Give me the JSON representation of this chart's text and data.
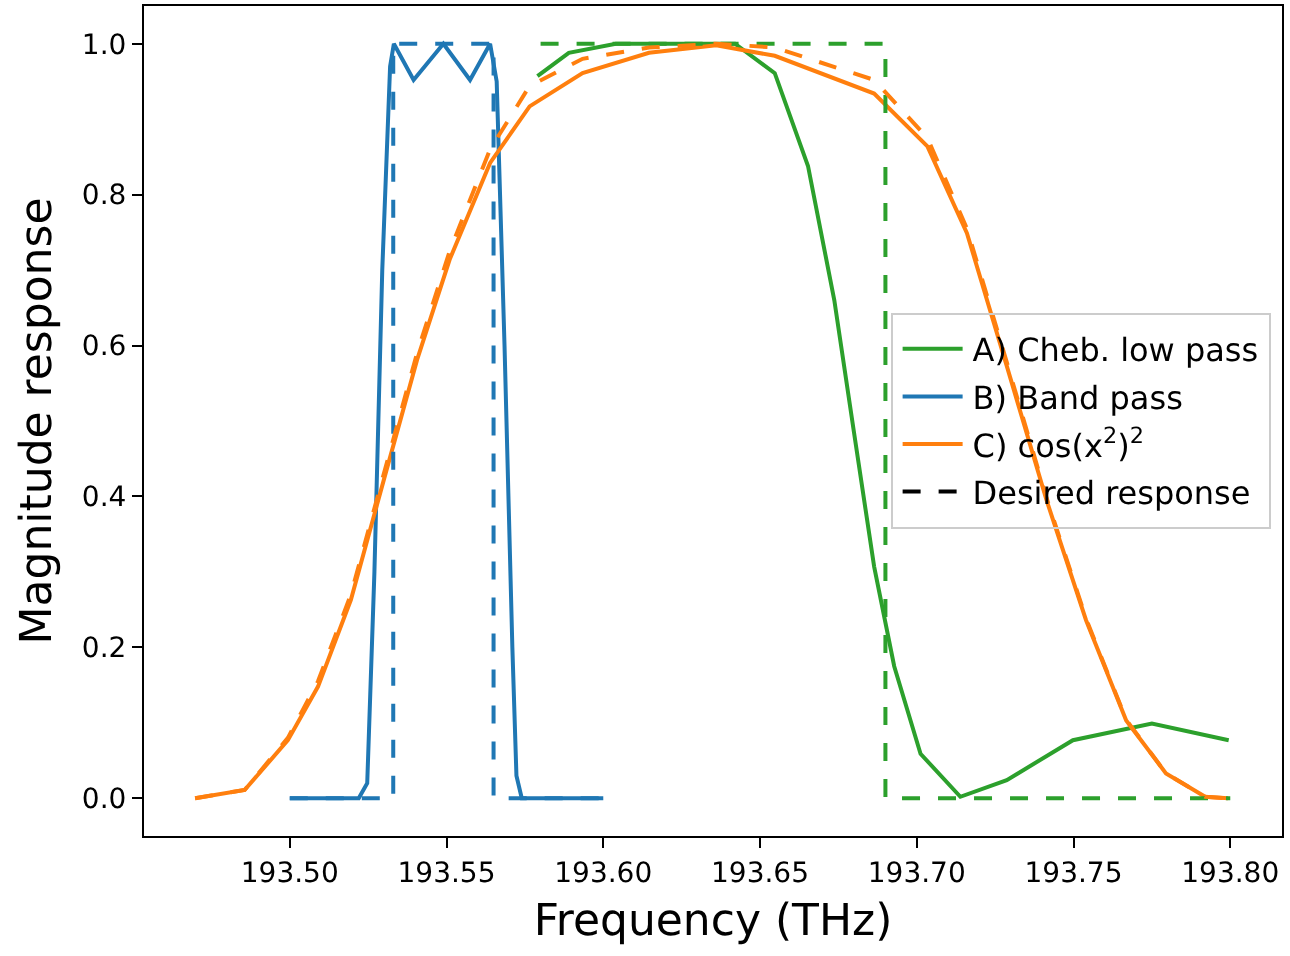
{
  "chart_data": {
    "type": "line",
    "xlabel": "Frequency (THz)",
    "ylabel": "Magnitude response",
    "xlim": [
      193.4535,
      193.8165
    ],
    "ylim": [
      -0.05,
      1.05
    ],
    "xticks": [
      {
        "value": 193.5,
        "label": "193.50"
      },
      {
        "value": 193.55,
        "label": "193.55"
      },
      {
        "value": 193.6,
        "label": "193.60"
      },
      {
        "value": 193.65,
        "label": "193.65"
      },
      {
        "value": 193.7,
        "label": "193.70"
      },
      {
        "value": 193.75,
        "label": "193.75"
      },
      {
        "value": 193.8,
        "label": "193.80"
      }
    ],
    "yticks": [
      {
        "value": 0,
        "label": "0.0"
      },
      {
        "value": 0.2,
        "label": "0.2"
      },
      {
        "value": 0.4,
        "label": "0.4"
      },
      {
        "value": 0.6,
        "label": "0.6"
      },
      {
        "value": 0.8,
        "label": "0.8"
      },
      {
        "value": 1,
        "label": "1.0"
      }
    ],
    "legend": "right",
    "marker": "none",
    "series": [
      {
        "name": "A) Cheb. low pass",
        "color": "#2ca02c",
        "line_style": "solid",
        "x": [
          193.579,
          193.589,
          193.604,
          193.642,
          193.6547,
          193.6653,
          193.6737,
          193.68,
          193.6864,
          193.6928,
          193.7012,
          193.7139,
          193.7287,
          193.7498,
          193.775,
          193.7995
        ],
        "values": [
          0.957,
          0.988,
          1.0,
          1.0,
          0.961,
          0.838,
          0.66,
          0.484,
          0.307,
          0.175,
          0.059,
          0.002,
          0.024,
          0.077,
          0.099,
          0.077
        ]
      },
      {
        "name": "B) Band pass",
        "color": "#1f77b4",
        "line_style": "solid",
        "x": [
          193.5,
          193.522,
          193.5247,
          193.527,
          193.5295,
          193.532,
          193.5332,
          193.5395,
          193.549,
          193.5575,
          193.5639,
          193.566,
          193.5685,
          193.571,
          193.5723,
          193.574,
          193.6
        ],
        "values": [
          0,
          0,
          0.02,
          0.3,
          0.7,
          0.97,
          1.0,
          0.952,
          1.0,
          0.952,
          1.0,
          0.95,
          0.6,
          0.2,
          0.03,
          0,
          0
        ]
      },
      {
        "name": "C) cos(x$^{2}$)$^{2}$",
        "color": "#ff7f0e",
        "line_style": "solid",
        "x": [
          193.4698,
          193.4856,
          193.4994,
          193.509,
          193.5195,
          193.53,
          193.5406,
          193.551,
          193.5639,
          193.5765,
          193.5934,
          193.6146,
          193.636,
          193.6547,
          193.6864,
          193.7034,
          193.716,
          193.7287,
          193.7414,
          193.754,
          193.7668,
          193.7795,
          193.792,
          193.7993
        ],
        "values": [
          0,
          0.011,
          0.077,
          0.148,
          0.263,
          0.422,
          0.581,
          0.714,
          0.842,
          0.917,
          0.961,
          0.988,
          0.998,
          0.984,
          0.934,
          0.864,
          0.749,
          0.573,
          0.395,
          0.236,
          0.103,
          0.033,
          0.002,
          0
        ]
      },
      {
        "color": "#2ca02c",
        "line_style": "dashed",
        "x": [
          193.58,
          193.69,
          193.69,
          193.8
        ],
        "values": [
          1,
          1,
          0,
          0
        ]
      },
      {
        "color": "#1f77b4",
        "line_style": "dashed",
        "x": [
          193.5,
          193.533,
          193.533,
          193.565,
          193.565,
          193.6
        ],
        "values": [
          0,
          0,
          1,
          1,
          0,
          0
        ]
      },
      {
        "color": "#ff7f0e",
        "line_style": "dashed",
        "x": [
          193.4698,
          193.4856,
          193.4994,
          193.509,
          193.5195,
          193.53,
          193.5406,
          193.551,
          193.5639,
          193.5765,
          193.5934,
          193.6146,
          193.636,
          193.6547,
          193.6864,
          193.7034,
          193.716,
          193.7287,
          193.7414,
          193.754,
          193.7668,
          193.7795,
          193.792,
          193.7993
        ],
        "values": [
          0,
          0.011,
          0.08,
          0.155,
          0.27,
          0.43,
          0.59,
          0.725,
          0.86,
          0.944,
          0.98,
          0.995,
          1.0,
          0.995,
          0.952,
          0.875,
          0.755,
          0.578,
          0.398,
          0.238,
          0.104,
          0.033,
          0.002,
          0
        ]
      },
      {
        "name": "Desired response",
        "color": "#000000",
        "line_style": "dashed",
        "values": [
          null
        ]
      }
    ]
  }
}
